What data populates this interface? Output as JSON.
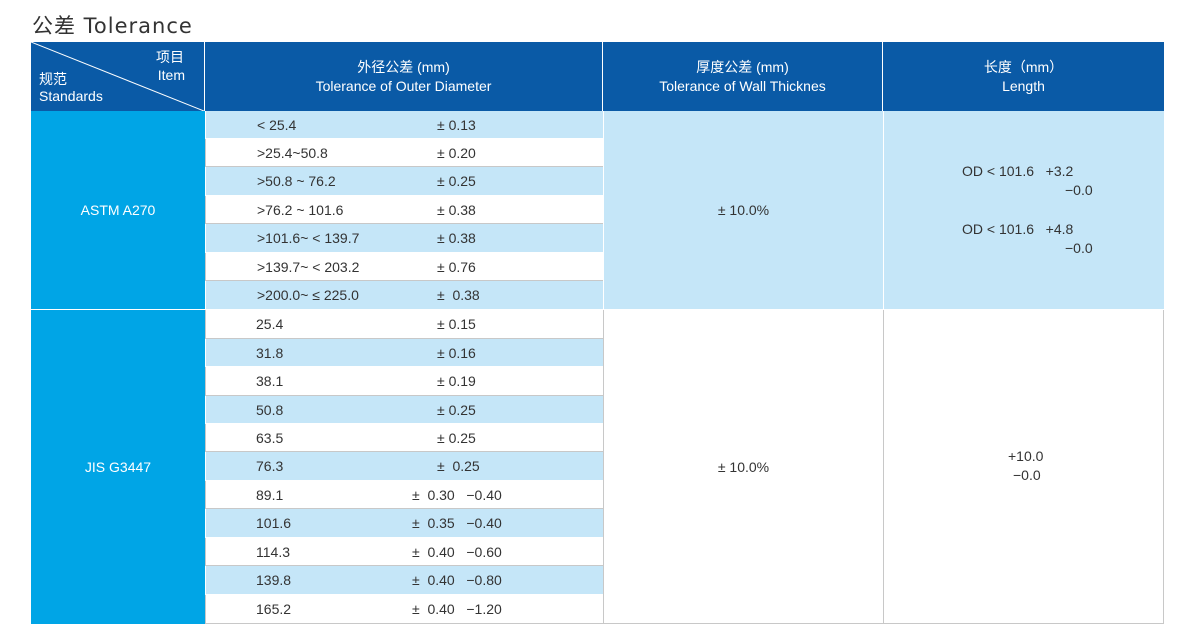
{
  "title": "公差 Tolerance",
  "header": {
    "corner": {
      "top_zh": "项目",
      "top_en": "Item",
      "bottom_zh": "规范",
      "bottom_en": "Standards"
    },
    "od": {
      "zh": "外径公差 (mm)",
      "en": "Tolerance of Outer Diameter"
    },
    "wall": {
      "zh": "厚度公差 (mm)",
      "en": "Tolerance of Wall Thicknes"
    },
    "length": {
      "zh": "长度（mm）",
      "en": "Length"
    }
  },
  "astm": {
    "standard": "ASTM A270",
    "rows": [
      {
        "size": "< 25.4",
        "tol": "± 0.13"
      },
      {
        "size": ">25.4~50.8",
        "tol": "± 0.20"
      },
      {
        "size": ">50.8 ~ 76.2",
        "tol": "± 0.25"
      },
      {
        "size": ">76.2 ~ 101.6",
        "tol": "± 0.38"
      },
      {
        "size": ">101.6~ < 139.7",
        "tol": "± 0.38"
      },
      {
        "size": ">139.7~ < 203.2",
        "tol": "± 0.76"
      },
      {
        "size": ">200.0~ ≤ 225.0",
        "tol": "±  0.38"
      }
    ],
    "wall": "± 10.0%",
    "length": {
      "l1a": "OD < 101.6   +3.2",
      "l1b": "−0.0",
      "l2a": "OD < 101.6   +4.8",
      "l2b": "−0.0"
    }
  },
  "jis": {
    "standard": "JIS G3447",
    "rows": [
      {
        "size": "25.4",
        "tol": "± 0.15"
      },
      {
        "size": "31.8",
        "tol": "± 0.16"
      },
      {
        "size": "38.1",
        "tol": "± 0.19"
      },
      {
        "size": "50.8",
        "tol": "± 0.25"
      },
      {
        "size": "63.5",
        "tol": "± 0.25"
      },
      {
        "size": "76.3",
        "tol": "±  0.25"
      },
      {
        "size": "89.1",
        "tol": "±  0.30   −0.40"
      },
      {
        "size": "101.6",
        "tol": "±  0.35   −0.40"
      },
      {
        "size": "114.3",
        "tol": "±  0.40   −0.60"
      },
      {
        "size": "139.8",
        "tol": "±  0.40   −0.80"
      },
      {
        "size": "165.2",
        "tol": "±  0.40   −1.20"
      }
    ],
    "wall": "± 10.0%",
    "length": {
      "l1": "+10.0",
      "l2": "−0.0"
    }
  },
  "colors": {
    "header": "#0a5aa6",
    "standard": "#00a5e6",
    "light_row": "#c5e6f8"
  }
}
